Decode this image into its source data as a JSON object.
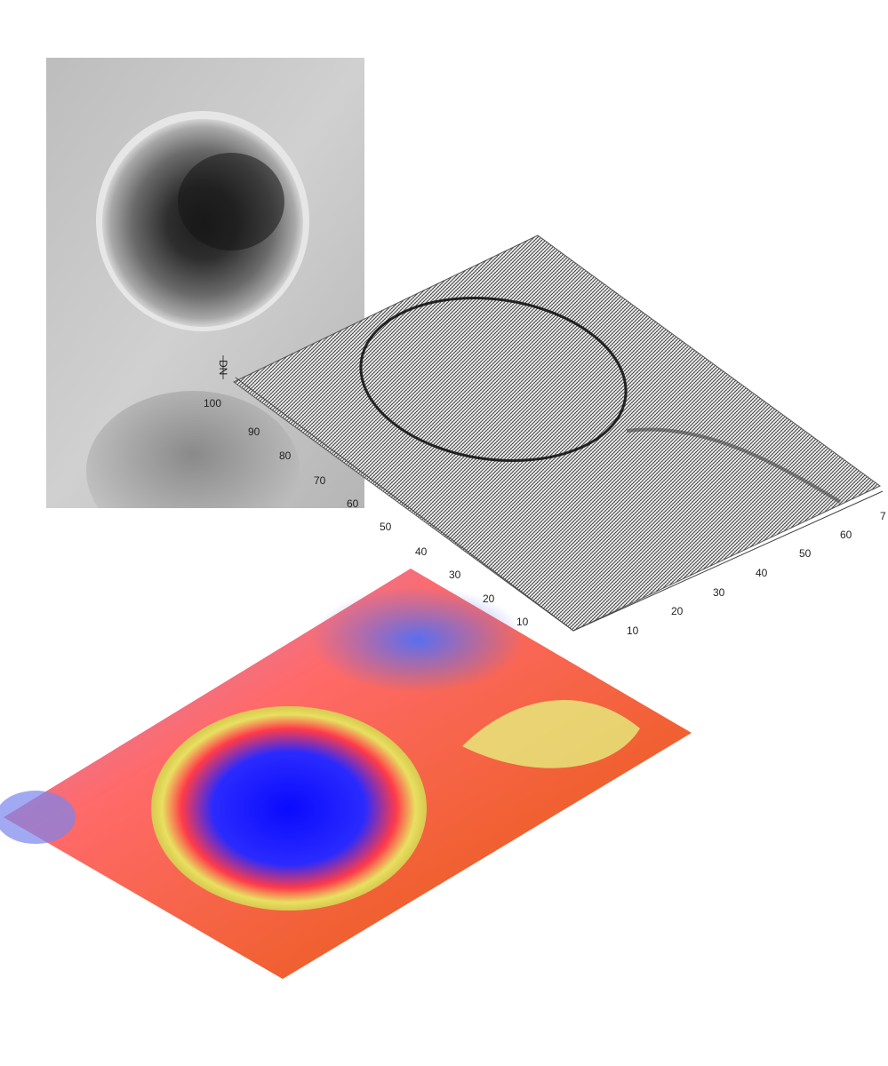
{
  "crater_photo": {
    "palette": {
      "rim_light": "#d8d8d8",
      "floor_dark": "#1e1e1e",
      "background": "#c9c9c9"
    }
  },
  "mesh_plot": {
    "z_axis_label": "DN",
    "y_axis_ticks": [
      "100",
      "90",
      "80",
      "70",
      "60",
      "50",
      "40",
      "30",
      "20",
      "10"
    ],
    "x_axis_ticks": [
      "10",
      "20",
      "30",
      "40",
      "50",
      "60",
      "7"
    ],
    "palette": {
      "mesh_light": "#ececec",
      "mesh_dark": "#333333",
      "axis": "#444444"
    }
  },
  "color_relief": {
    "palette": {
      "low": "#0a0aff",
      "mid": "#ff4040",
      "high": "#e8e870",
      "outer": "#c98ad0"
    }
  }
}
